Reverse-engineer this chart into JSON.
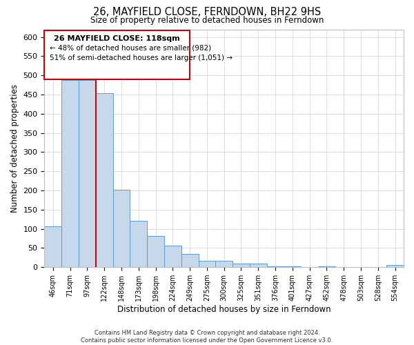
{
  "title": "26, MAYFIELD CLOSE, FERNDOWN, BH22 9HS",
  "subtitle": "Size of property relative to detached houses in Ferndown",
  "xlabel": "Distribution of detached houses by size in Ferndown",
  "ylabel": "Number of detached properties",
  "bin_labels": [
    "46sqm",
    "71sqm",
    "97sqm",
    "122sqm",
    "148sqm",
    "173sqm",
    "198sqm",
    "224sqm",
    "249sqm",
    "275sqm",
    "300sqm",
    "325sqm",
    "351sqm",
    "376sqm",
    "401sqm",
    "427sqm",
    "452sqm",
    "478sqm",
    "503sqm",
    "528sqm",
    "554sqm"
  ],
  "bar_heights": [
    106,
    487,
    487,
    453,
    202,
    121,
    82,
    56,
    35,
    17,
    17,
    10,
    10,
    3,
    3,
    0,
    3,
    0,
    0,
    0,
    5
  ],
  "bar_color": "#c8d8eb",
  "bar_edge_color": "#5b9bd5",
  "ylim": [
    0,
    620
  ],
  "yticks": [
    0,
    50,
    100,
    150,
    200,
    250,
    300,
    350,
    400,
    450,
    500,
    550,
    600
  ],
  "vline_x": 3,
  "vline_color": "#cc0000",
  "annotation_title": "26 MAYFIELD CLOSE: 118sqm",
  "annotation_line1": "← 48% of detached houses are smaller (982)",
  "annotation_line2": "51% of semi-detached houses are larger (1,051) →",
  "annotation_box_color": "#cc0000",
  "footer_line1": "Contains HM Land Registry data © Crown copyright and database right 2024.",
  "footer_line2": "Contains public sector information licensed under the Open Government Licence v3.0.",
  "background_color": "#ffffff",
  "grid_color": "#d0d0d0"
}
